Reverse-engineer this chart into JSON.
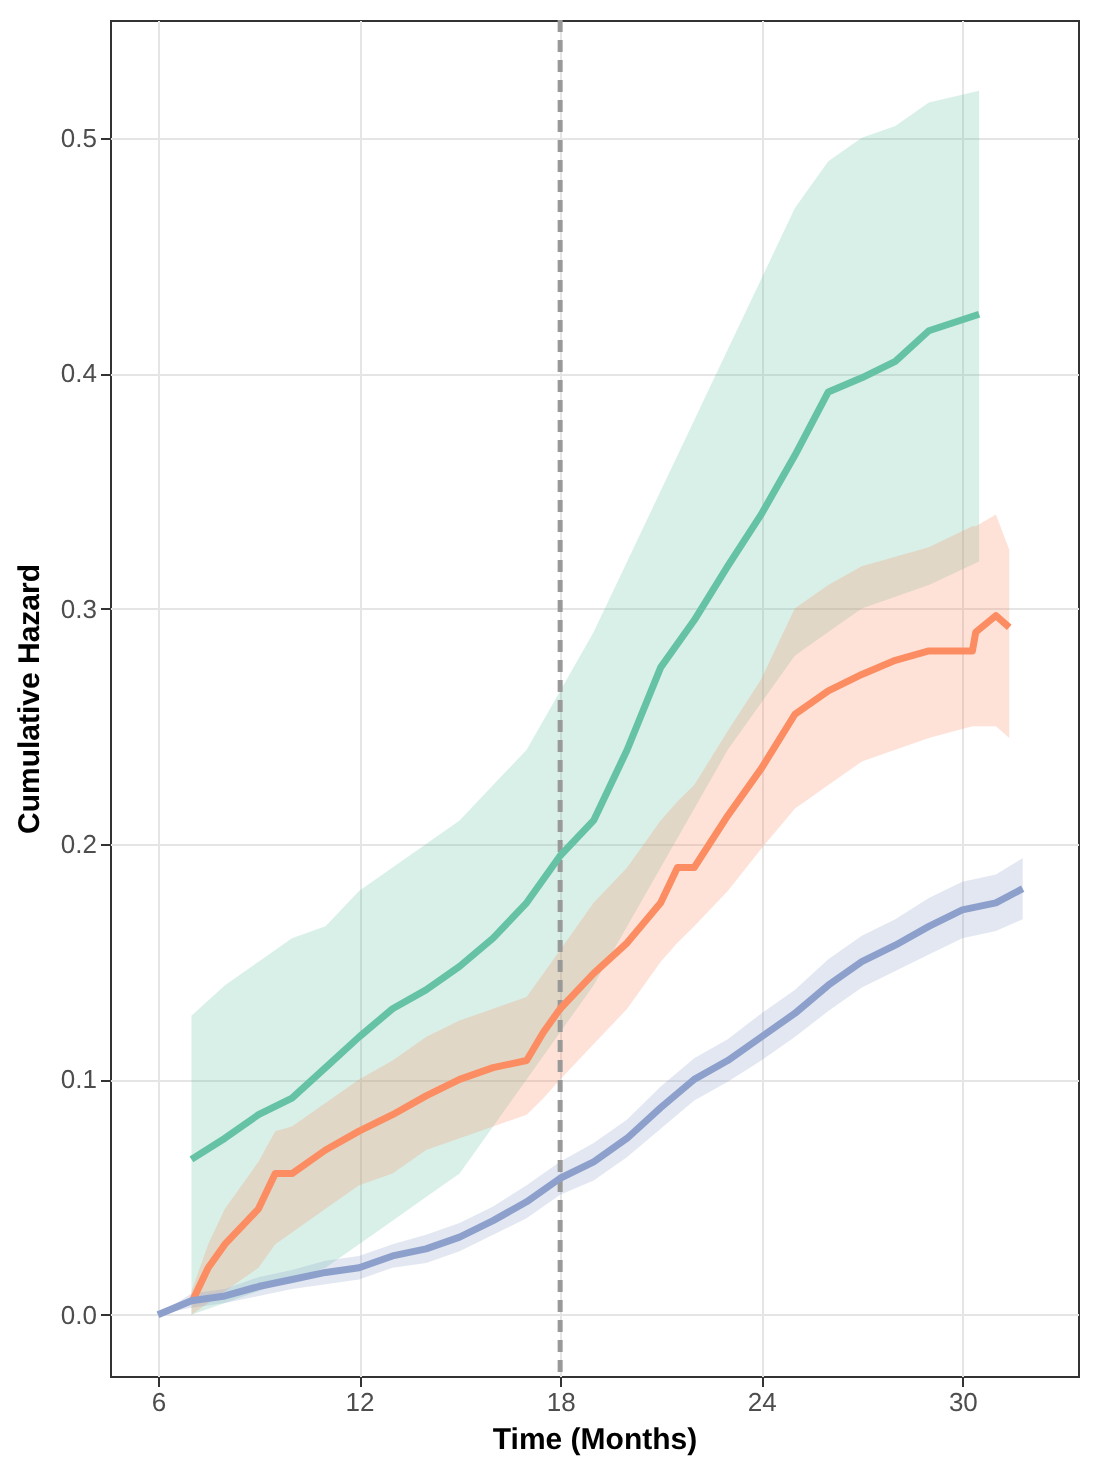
{
  "chart_data": {
    "type": "line",
    "xlabel": "Time (Months)",
    "ylabel": "Cumulative Hazard",
    "xlim": [
      4.57,
      33.45
    ],
    "ylim": [
      -0.026,
      0.55
    ],
    "xticks": [
      6,
      12,
      18,
      24,
      30
    ],
    "yticks": [
      {
        "value": 0,
        "label": "0.0"
      },
      {
        "value": 0.1,
        "label": "0.1"
      },
      {
        "value": 0.2,
        "label": "0.2"
      },
      {
        "value": 0.3,
        "label": "0.3"
      },
      {
        "value": 0.4,
        "label": "0.4"
      },
      {
        "value": 0.5,
        "label": "0.5"
      }
    ],
    "grid": true,
    "ref_lines": [
      {
        "axis": "x",
        "value": 18,
        "color": "#999999",
        "line_style": "dashed"
      }
    ],
    "series": [
      {
        "color": "#66c2a5",
        "x": [
          7,
          8,
          9,
          10,
          11,
          12,
          13,
          14,
          15,
          16,
          17,
          18,
          19,
          20,
          21,
          22,
          23,
          24,
          25,
          26,
          27,
          28,
          29,
          30.5
        ],
        "values": [
          0.066,
          0.075,
          0.085,
          0.092,
          0.105,
          0.118,
          0.13,
          0.138,
          0.148,
          0.16,
          0.175,
          0.195,
          0.21,
          0.24,
          0.275,
          0.295,
          0.318,
          0.34,
          0.365,
          0.392,
          0.398,
          0.405,
          0.418,
          0.425
        ],
        "lower": [
          0,
          0.005,
          0.01,
          0.015,
          0.02,
          0.03,
          0.04,
          0.05,
          0.06,
          0.08,
          0.1,
          0.12,
          0.14,
          0.165,
          0.19,
          0.215,
          0.24,
          0.26,
          0.28,
          0.29,
          0.3,
          0.305,
          0.31,
          0.32
        ],
        "upper": [
          0.127,
          0.14,
          0.15,
          0.16,
          0.165,
          0.18,
          0.19,
          0.2,
          0.21,
          0.225,
          0.24,
          0.265,
          0.29,
          0.32,
          0.35,
          0.38,
          0.41,
          0.44,
          0.47,
          0.49,
          0.5,
          0.505,
          0.515,
          0.52
        ]
      },
      {
        "color": "#fc8d62",
        "x": [
          7,
          7.5,
          8,
          9,
          9.5,
          10,
          11,
          12,
          13,
          14,
          15,
          16,
          17,
          17.5,
          18,
          19,
          20,
          21,
          21.5,
          22,
          23,
          24,
          25,
          26,
          27,
          28,
          29,
          30.3,
          30.4,
          31,
          31.4
        ],
        "values": [
          0.005,
          0.02,
          0.03,
          0.045,
          0.06,
          0.06,
          0.07,
          0.078,
          0.085,
          0.093,
          0.1,
          0.105,
          0.108,
          0.12,
          0.13,
          0.145,
          0.158,
          0.175,
          0.19,
          0.19,
          0.212,
          0.232,
          0.255,
          0.265,
          0.272,
          0.278,
          0.282,
          0.282,
          0.29,
          0.297,
          0.292
        ],
        "lower": [
          0,
          0.005,
          0.01,
          0.02,
          0.03,
          0.035,
          0.045,
          0.055,
          0.06,
          0.07,
          0.075,
          0.08,
          0.085,
          0.092,
          0.1,
          0.115,
          0.13,
          0.15,
          0.158,
          0.165,
          0.18,
          0.198,
          0.215,
          0.225,
          0.235,
          0.24,
          0.245,
          0.25,
          0.25,
          0.25,
          0.245
        ],
        "upper": [
          0.01,
          0.03,
          0.045,
          0.065,
          0.078,
          0.08,
          0.09,
          0.1,
          0.108,
          0.118,
          0.125,
          0.13,
          0.135,
          0.145,
          0.155,
          0.175,
          0.19,
          0.21,
          0.218,
          0.225,
          0.248,
          0.27,
          0.3,
          0.31,
          0.318,
          0.322,
          0.326,
          0.335,
          0.335,
          0.34,
          0.325
        ]
      },
      {
        "color": "#8da0cb",
        "x": [
          6,
          7,
          8,
          9,
          10,
          11,
          12,
          13,
          14,
          15,
          16,
          17,
          18,
          19,
          20,
          21,
          22,
          23,
          24,
          25,
          26,
          27,
          28,
          29,
          30,
          31,
          31.8
        ],
        "values": [
          0,
          0.006,
          0.008,
          0.012,
          0.015,
          0.018,
          0.02,
          0.025,
          0.028,
          0.033,
          0.04,
          0.048,
          0.058,
          0.065,
          0.075,
          0.088,
          0.1,
          0.108,
          0.118,
          0.128,
          0.14,
          0.15,
          0.157,
          0.165,
          0.172,
          0.175,
          0.181
        ],
        "lower": [
          0,
          0.003,
          0.005,
          0.008,
          0.011,
          0.013,
          0.015,
          0.02,
          0.022,
          0.027,
          0.034,
          0.041,
          0.051,
          0.057,
          0.067,
          0.079,
          0.091,
          0.099,
          0.108,
          0.118,
          0.129,
          0.139,
          0.146,
          0.153,
          0.16,
          0.163,
          0.168
        ],
        "upper": [
          0,
          0.009,
          0.011,
          0.016,
          0.019,
          0.023,
          0.025,
          0.03,
          0.034,
          0.039,
          0.046,
          0.055,
          0.065,
          0.073,
          0.083,
          0.097,
          0.109,
          0.117,
          0.128,
          0.138,
          0.151,
          0.161,
          0.168,
          0.177,
          0.184,
          0.187,
          0.194
        ]
      }
    ]
  }
}
